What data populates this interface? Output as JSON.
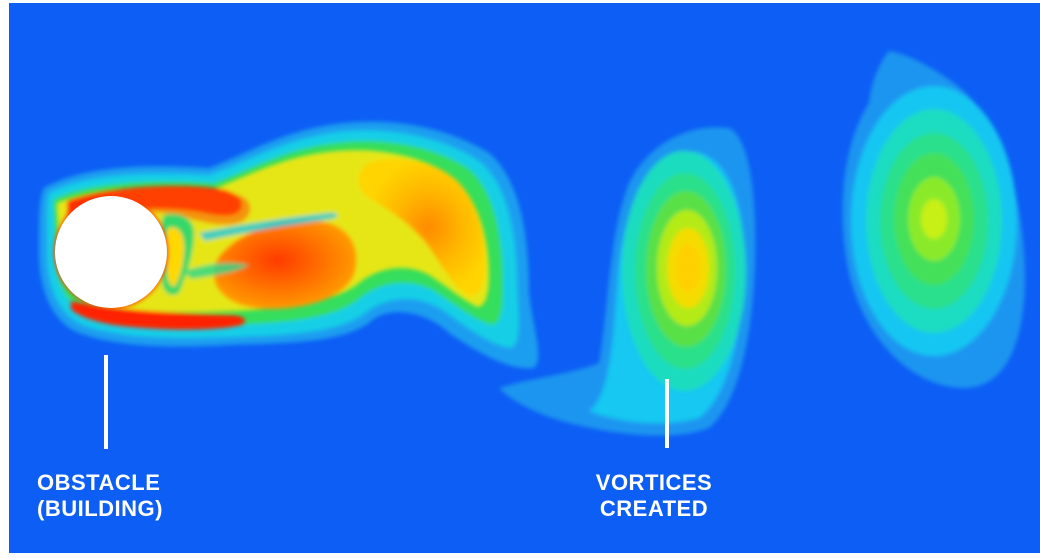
{
  "background_color": "#0d5ef5",
  "colors": {
    "low": "#1b8ff2",
    "mid_cyan": "#17d8f0",
    "mid_green": "#2fe06a",
    "high_yellow": "#ffd600",
    "max_red": "#ff1a00",
    "obstacle": "#ffffff"
  },
  "labels": {
    "obstacle": {
      "line1": "OBSTACLE",
      "line2": "(BUILDING)"
    },
    "vortices": {
      "line1": "VORTICES",
      "line2": "CREATED"
    }
  }
}
